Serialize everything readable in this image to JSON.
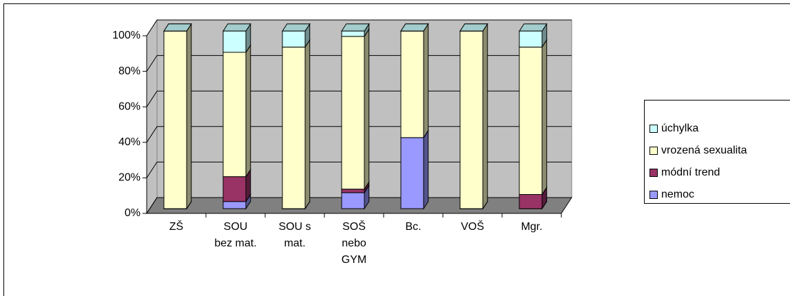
{
  "chart_data": {
    "type": "bar3d_stacked",
    "categories": [
      [
        "ZŠ"
      ],
      [
        "SOU",
        "bez mat."
      ],
      [
        "SOU s",
        "mat."
      ],
      [
        "SOŠ",
        "nebo",
        "GYM"
      ],
      [
        "Bc."
      ],
      [
        "VOŠ"
      ],
      [
        "Mgr."
      ]
    ],
    "series": [
      {
        "name": "nemoc",
        "color": "#9999ff",
        "values": [
          0,
          4,
          0,
          9,
          40,
          0,
          0
        ]
      },
      {
        "name": "módní trend",
        "color": "#993366",
        "values": [
          0,
          14,
          0,
          2,
          0,
          0,
          8
        ]
      },
      {
        "name": "vrozená sexualita",
        "color": "#ffffcc",
        "values": [
          100,
          70,
          91,
          86,
          60,
          100,
          83
        ]
      },
      {
        "name": "úchylka",
        "color": "#ccffff",
        "values": [
          0,
          12,
          9,
          3,
          0,
          0,
          9
        ]
      }
    ],
    "ylim": [
      0,
      100
    ],
    "yticks": [
      {
        "value": 0,
        "label": "0%"
      },
      {
        "value": 20,
        "label": "20%"
      },
      {
        "value": 40,
        "label": "40%"
      },
      {
        "value": 60,
        "label": "60%"
      },
      {
        "value": 80,
        "label": "80%"
      },
      {
        "value": 100,
        "label": "100%"
      }
    ],
    "grid": true
  }
}
